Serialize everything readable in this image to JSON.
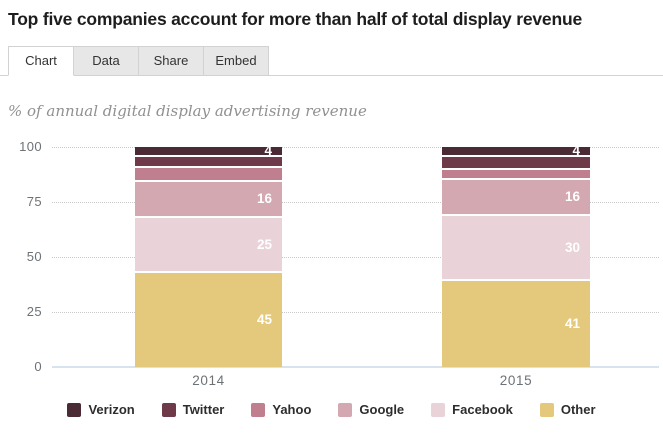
{
  "header": {
    "title": "Top five companies account for more than half of total display revenue"
  },
  "tabs": [
    {
      "label": "Chart",
      "active": true
    },
    {
      "label": "Data",
      "active": false
    },
    {
      "label": "Share",
      "active": false
    },
    {
      "label": "Embed",
      "active": false
    }
  ],
  "chart_data": {
    "type": "bar",
    "stacked": true,
    "percent_stacked": true,
    "title": "Top five companies account for more than half of total display revenue",
    "subtitle": "% of annual digital display advertising revenue",
    "categories": [
      "2014",
      "2015"
    ],
    "series": [
      {
        "name": "Verizon",
        "color": "#4a2a35",
        "values": [
          4,
          4
        ],
        "shown_labels": [
          "4",
          "4"
        ]
      },
      {
        "name": "Twitter",
        "color": "#6e3a4a",
        "values": [
          4,
          5
        ],
        "shown_labels": [
          "",
          ""
        ]
      },
      {
        "name": "Yahoo",
        "color": "#c07f8e",
        "values": [
          6,
          4
        ],
        "shown_labels": [
          "",
          ""
        ]
      },
      {
        "name": "Google",
        "color": "#d3a8b1",
        "values": [
          16,
          16
        ],
        "shown_labels": [
          "16",
          "16"
        ]
      },
      {
        "name": "Facebook",
        "color": "#e9d2d8",
        "values": [
          25,
          30
        ],
        "shown_labels": [
          "25",
          "30"
        ]
      },
      {
        "name": "Other",
        "color": "#e4c97c",
        "values": [
          45,
          41
        ],
        "shown_labels": [
          "45",
          "41"
        ]
      }
    ],
    "ylim": [
      0,
      100
    ],
    "yticks": [
      0,
      25,
      50,
      75,
      100
    ],
    "grid": "horizontal-dotted",
    "legend_position": "bottom",
    "legend": [
      "Verizon",
      "Twitter",
      "Yahoo",
      "Google",
      "Facebook",
      "Other"
    ],
    "style_colors": {
      "gridline": "#c8c8c8",
      "baseline": "#d7e4ef",
      "axis_text": "#6d7277",
      "value_label_text": "#ffffff"
    }
  }
}
